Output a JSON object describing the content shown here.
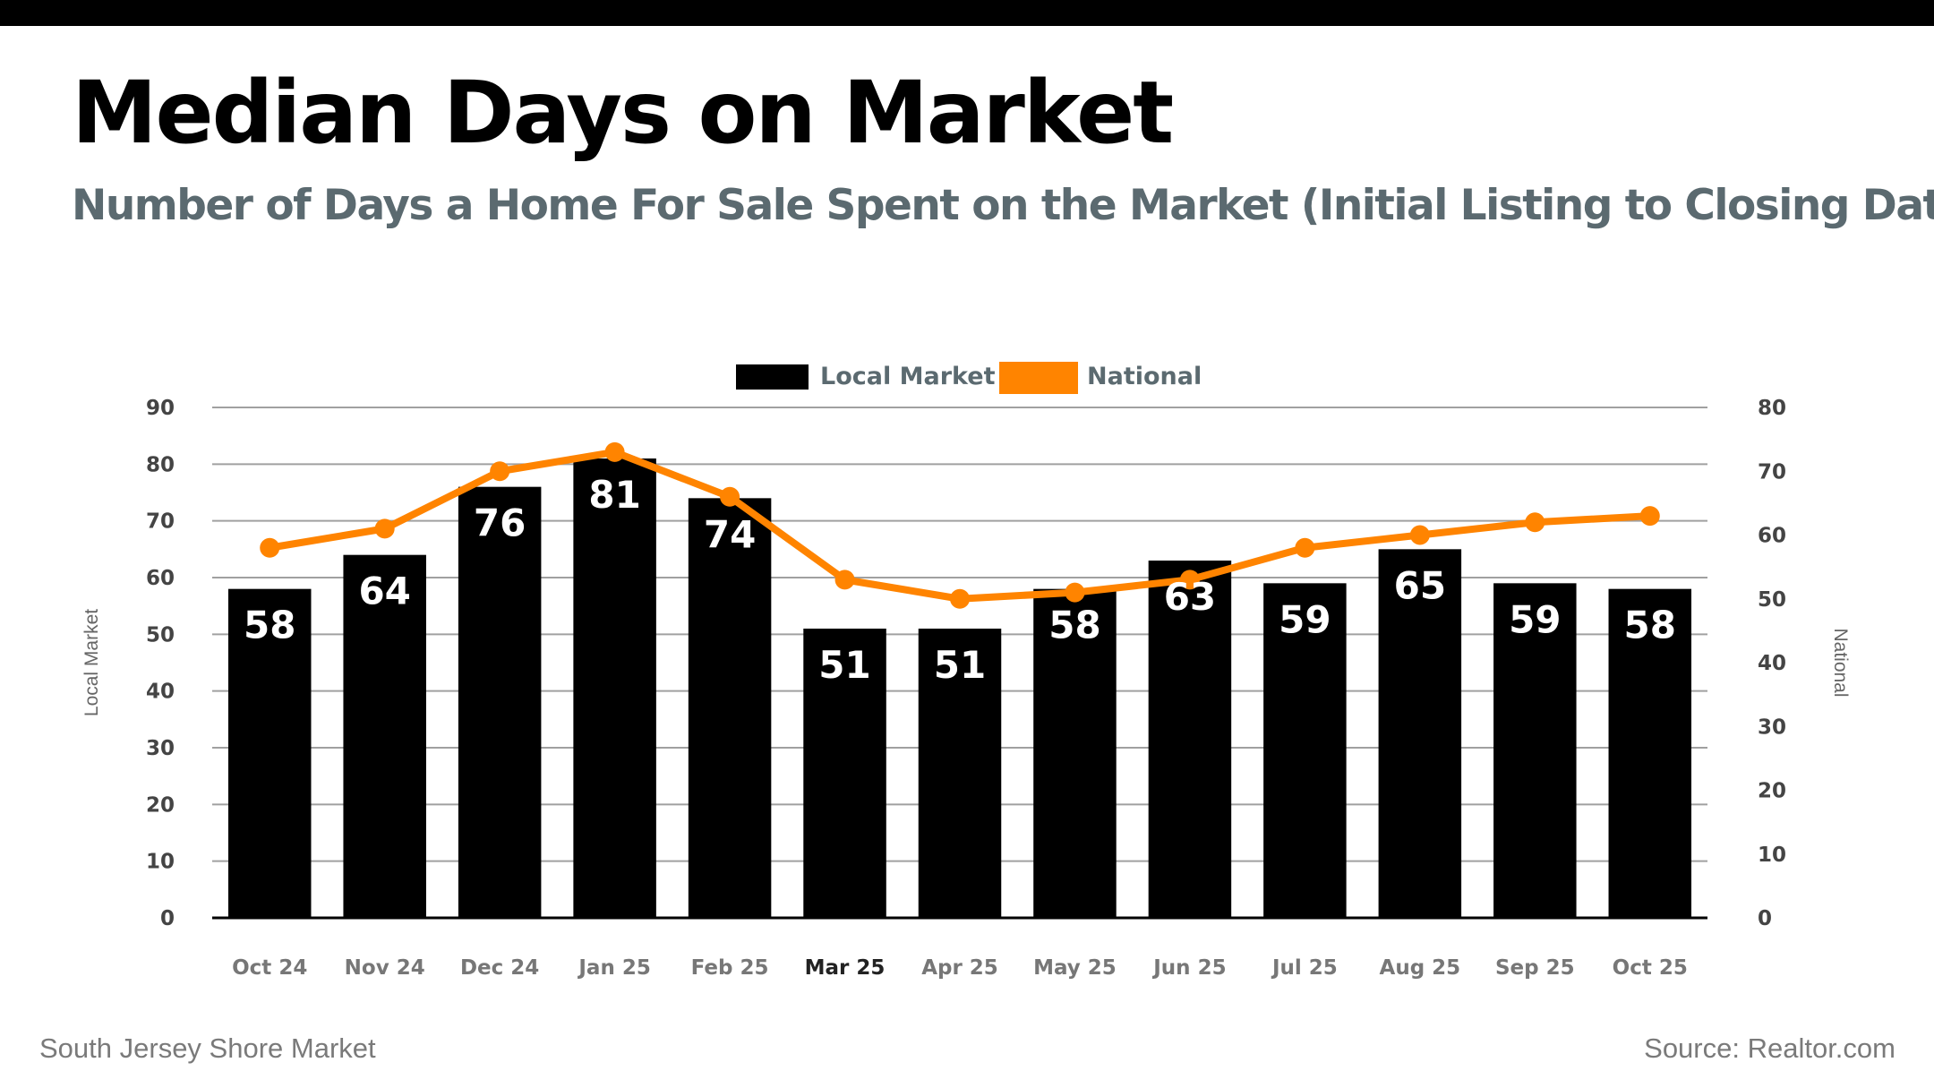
{
  "page": {
    "title": "Median Days on Market",
    "subtitle": "Number of Days a Home For Sale Spent on the Market (Initial Listing to Closing Date)",
    "footer_left": "South Jersey Shore Market",
    "footer_right": "Source: Realtor.com"
  },
  "chart_data": {
    "type": "bar+line",
    "categories": [
      "Oct 24",
      "Nov 24",
      "Dec 24",
      "Jan 25",
      "Feb 25",
      "Mar 25",
      "Apr 25",
      "May 25",
      "Jun 25",
      "Jul 25",
      "Aug 25",
      "Sep 25",
      "Oct 25"
    ],
    "highlighted_category": "Mar 25",
    "series": [
      {
        "name": "Local Market",
        "type": "bar",
        "axis": "left",
        "color": "#000000",
        "values": [
          58,
          64,
          76,
          81,
          74,
          51,
          51,
          58,
          63,
          59,
          65,
          59,
          58
        ],
        "data_labels": true
      },
      {
        "name": "National",
        "type": "line",
        "axis": "right",
        "color": "#FF8400",
        "values": [
          58,
          61,
          70,
          73,
          66,
          53,
          50,
          51,
          53,
          58,
          60,
          62,
          63
        ]
      }
    ],
    "ylabel_left": "Local Market",
    "ylabel_right": "National",
    "ylim_left": [
      0,
      90
    ],
    "yticks_left": [
      0,
      10,
      20,
      30,
      40,
      50,
      60,
      70,
      80,
      90
    ],
    "ylim_right": [
      0,
      80
    ],
    "yticks_right": [
      0,
      10,
      20,
      30,
      40,
      50,
      60,
      70,
      80
    ],
    "grid": true,
    "legend": "top-center"
  }
}
